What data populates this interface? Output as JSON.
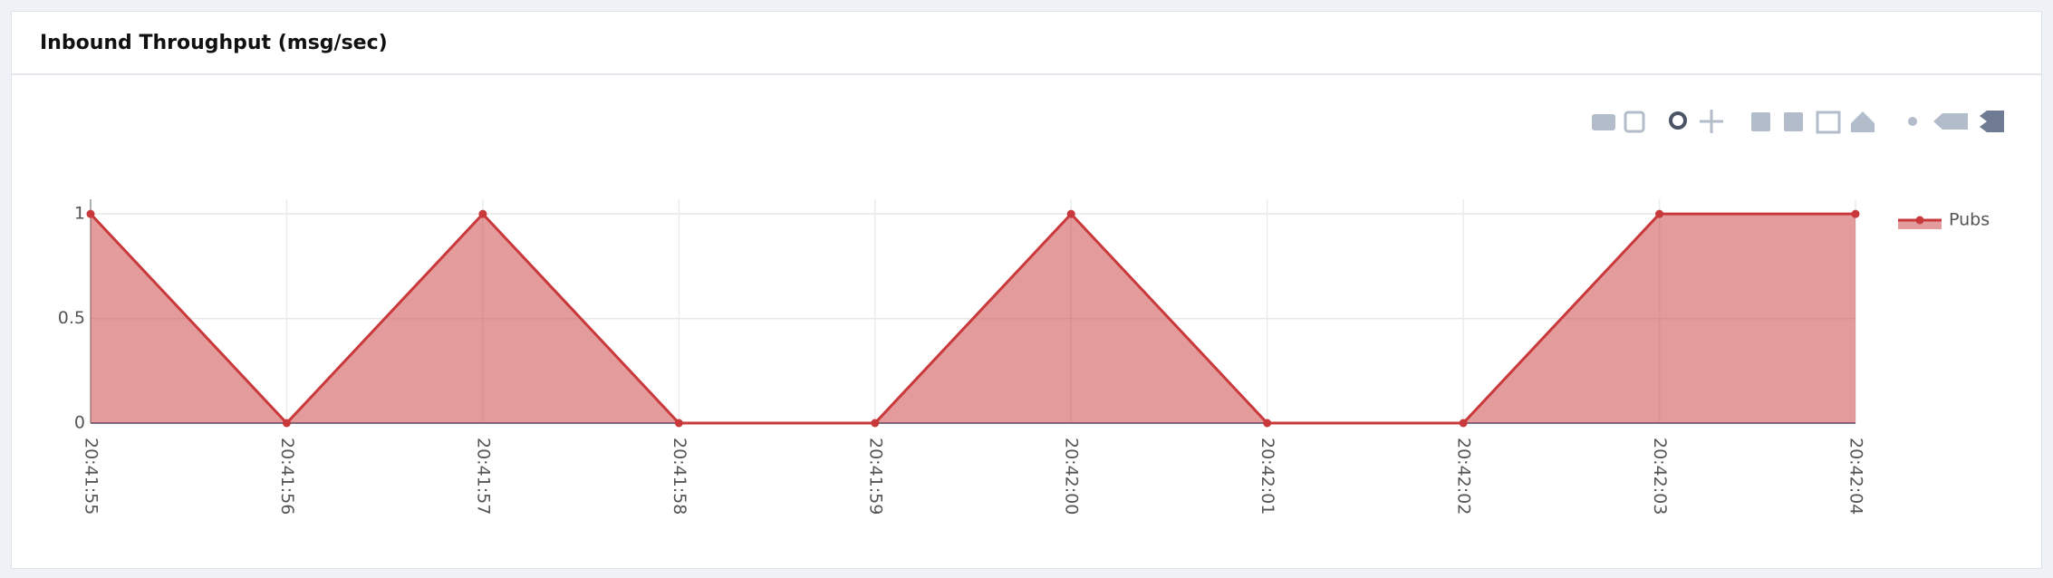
{
  "chart_data": {
    "type": "area",
    "title": "Inbound Throughput (msg/sec)",
    "categories": [
      "20:41:55",
      "20:41:56",
      "20:41:57",
      "20:41:58",
      "20:41:59",
      "20:42:00",
      "20:42:01",
      "20:42:02",
      "20:42:03",
      "20:42:04"
    ],
    "series": [
      {
        "name": "Pubs",
        "color": "#c9383a",
        "values": [
          1,
          0,
          1,
          0,
          0,
          1,
          0,
          0,
          1,
          1
        ]
      }
    ],
    "ylim": [
      0,
      1.07
    ],
    "yticks": [
      0,
      0.5,
      1
    ],
    "grid": true,
    "legend": "top-right"
  }
}
